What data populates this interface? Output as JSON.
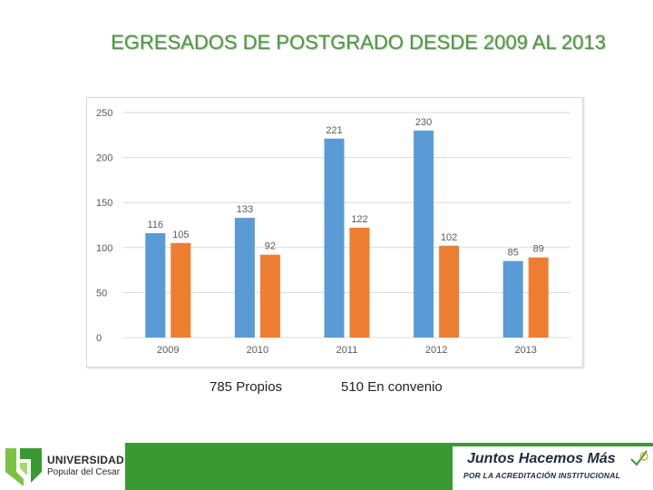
{
  "title": "EGRESADOS DE POSTGRADO DESDE 2009 AL 2013",
  "chart_data": {
    "type": "bar",
    "categories": [
      "2009",
      "2010",
      "2011",
      "2012",
      "2013"
    ],
    "series": [
      {
        "name": "Propios",
        "color": "#5b9bd5",
        "values": [
          116,
          133,
          221,
          230,
          85
        ]
      },
      {
        "name": "En convenio",
        "color": "#ed7d31",
        "values": [
          105,
          92,
          122,
          102,
          89
        ]
      }
    ],
    "ylim": [
      0,
      250
    ],
    "yticks": [
      0,
      50,
      100,
      150,
      200,
      250
    ],
    "grid": true,
    "title": "",
    "xlabel": "",
    "ylabel": ""
  },
  "summary": {
    "own": "785 Propios",
    "convention": "510 En convenio"
  },
  "footer": {
    "slogan": "Juntos Hacemos Más",
    "slogan_sub": "POR LA ACREDITACIÓN INSTITUCIONAL",
    "bar_color": "#3a9a32"
  },
  "logo": {
    "name": "UNIVERSIDAD",
    "sub": "Popular del Cesar"
  }
}
